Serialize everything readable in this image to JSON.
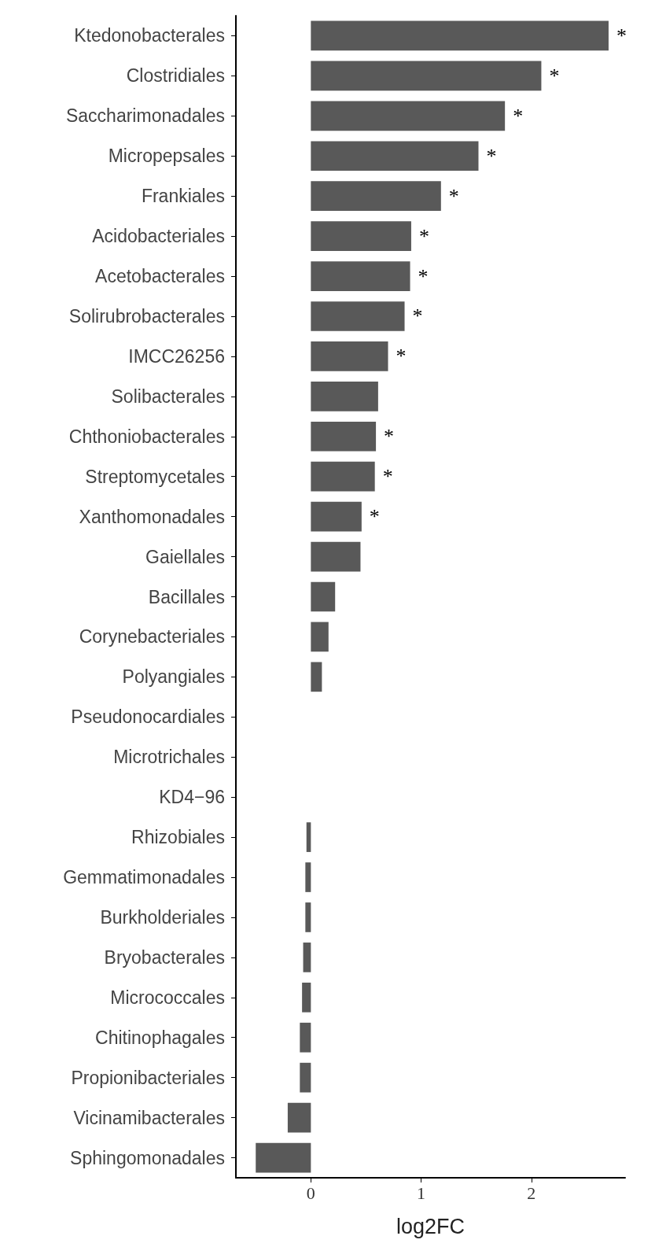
{
  "chart_data": {
    "type": "bar",
    "orientation": "horizontal",
    "xlabel": "log2FC",
    "categories": [
      "Ktedonobacterales",
      "Clostridiales",
      "Saccharimonadales",
      "Micropepsales",
      "Frankiales",
      "Acidobacteriales",
      "Acetobacterales",
      "Solirubrobacterales",
      "IMCC26256",
      "Solibacterales",
      "Chthoniobacterales",
      "Streptomycetales",
      "Xanthomonadales",
      "Gaiellales",
      "Bacillales",
      "Corynebacteriales",
      "Polyangiales",
      "Pseudonocardiales",
      "Microtrichales",
      "KD4−96",
      "Rhizobiales",
      "Gemmatimonadales",
      "Burkholderiales",
      "Bryobacterales",
      "Micrococcales",
      "Chitinophagales",
      "Propionibacteriales",
      "Vicinamibacterales",
      "Sphingomonadales"
    ],
    "values": [
      2.7,
      2.09,
      1.76,
      1.52,
      1.18,
      0.91,
      0.9,
      0.85,
      0.7,
      0.61,
      0.59,
      0.58,
      0.46,
      0.45,
      0.22,
      0.16,
      0.1,
      0,
      0,
      0,
      -0.04,
      -0.05,
      -0.05,
      -0.07,
      -0.08,
      -0.1,
      -0.1,
      -0.21,
      -0.5
    ],
    "value_labels": [
      "*",
      "*",
      "*",
      "*",
      "*",
      "*",
      "*",
      "*",
      "*",
      null,
      "*",
      "*",
      "*",
      null,
      null,
      null,
      null,
      null,
      null,
      null,
      null,
      null,
      null,
      null,
      null,
      null,
      null,
      null,
      null
    ],
    "color": "#595959",
    "xlim": [
      -0.68,
      2.85
    ],
    "xticks": [
      0,
      1,
      2
    ],
    "grid": false
  }
}
